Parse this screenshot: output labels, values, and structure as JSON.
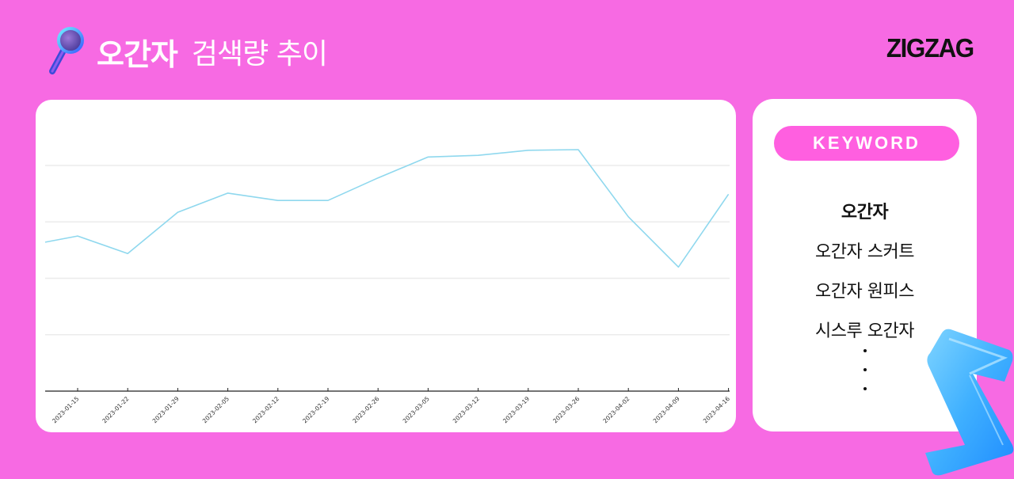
{
  "header": {
    "title_keyword": "오간자",
    "title_rest": "검색량 추이",
    "icon": "magnifier-icon"
  },
  "brand": {
    "logo": "ZIGZAG"
  },
  "colors": {
    "background": "#f76ae3",
    "line": "#8fd8ee",
    "pill": "#ff5fe0",
    "grid": "#ebebeb",
    "axis": "#222222"
  },
  "keyword_panel": {
    "label": "KEYWORD",
    "items": [
      {
        "text": "오간자",
        "primary": true
      },
      {
        "text": "오간자 스커트",
        "primary": false
      },
      {
        "text": "오간자 원피스",
        "primary": false
      },
      {
        "text": "시스루 오간자",
        "primary": false
      }
    ],
    "more_indicator": "⋮"
  },
  "chart_data": {
    "type": "line",
    "title": "오간자 검색량 추이",
    "xlabel": "",
    "ylabel": "",
    "y_tick_labels_visible": false,
    "ylim": [
      0,
      5
    ],
    "grid": true,
    "gridlines_at": [
      1,
      2,
      3,
      4
    ],
    "legend": null,
    "categories": [
      "",
      "2023-01-15",
      "2023-01-22",
      "2023-01-29",
      "2023-02-05",
      "2023-02-12",
      "2023-02-19",
      "2023-02-26",
      "2023-03-05",
      "2023-03-12",
      "2023-03-19",
      "2023-03-26",
      "2023-04-02",
      "2023-04-09",
      "2023-04-16"
    ],
    "x_tick_labels": [
      "2023-01-15",
      "2023-01-22",
      "2023-01-29",
      "2023-02-05",
      "2023-02-12",
      "2023-02-19",
      "2023-02-26",
      "2023-03-05",
      "2023-03-12",
      "2023-03-19",
      "2023-03-26",
      "2023-04-02",
      "2023-04-09",
      "2023-04-16"
    ],
    "series": [
      {
        "name": "오간자",
        "color": "#8fd8ee",
        "values": [
          2.64,
          2.75,
          2.44,
          3.17,
          3.51,
          3.38,
          3.38,
          3.78,
          4.15,
          4.18,
          4.27,
          4.28,
          3.09,
          2.2,
          3.49
        ]
      }
    ],
    "value_scale_note": "relative units; no y-axis labels shown"
  }
}
